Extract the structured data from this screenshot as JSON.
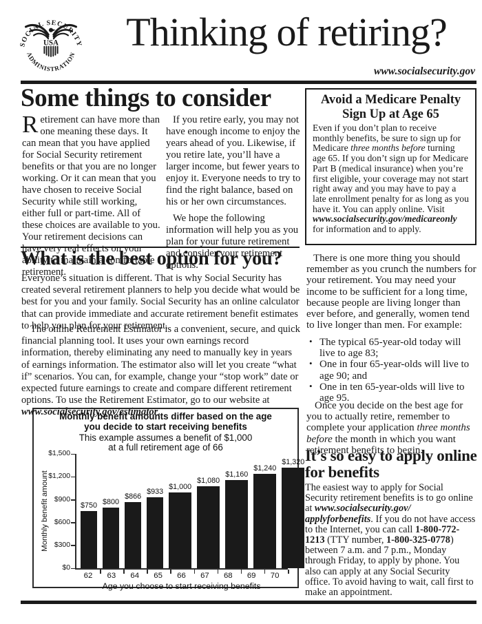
{
  "header": {
    "seal": {
      "top_text": "SOCIAL SECURITY",
      "bottom_text": "ADMINISTRATION",
      "center_text": "USA"
    },
    "title": "Thinking of retiring?",
    "website": "www.socialsecurity.gov"
  },
  "some_things": {
    "heading": "Some things to consider",
    "col1_dropcap": "R",
    "col1_rest": "etirement can have more than one meaning these days. It can mean that you have applied for Social Security retirement benefits or that you are no longer working. Or it can mean that you have chosen to receive Social Security while still working, either full or part-time. All of these choices are available to you. Your retirement decisions can have very real effects on your ability to maintain a comfortable retirement.",
    "col2_p1": "If you retire early, you may not have enough income to enjoy the years ahead of you. Likewise, if you retire late, you’ll have a larger income, but fewer years to enjoy it. Everyone needs to try to find the right balance, based on his or her own circumstances.",
    "col2_p2": "We hope the following information will help you as you plan for your future retirement and consider your retirement options."
  },
  "medicare_box": {
    "heading_line1": "Avoid a Medicare Penalty",
    "heading_line2": "Sign Up at Age 65",
    "body": [
      "Even if you don’t plan to receive monthly benefits, be sure to sign up for Medicare ",
      "three months before",
      " turning age 65. If you don’t sign up for Medicare Part B (medical insurance) when you’re first eligible, your coverage may not start right away and you may have to pay a late enrollment penalty for as long as you have it. You can apply online. Visit ",
      "www.socialsecurity.gov/",
      "medicareonly",
      " for information and to apply."
    ]
  },
  "best_option": {
    "heading": "What is the best option for you?",
    "p1": "Everyone’s situation is different. That is why Social Security has created several retirement planners to help you decide what would be best for you and your family. Social Security has an online calculator that can provide immediate and accurate retirement benefit estimates to help you plan for your retirement.",
    "p2": [
      "The online Retirement Estimator is a convenient, secure, and quick financial planning tool. It uses your own earnings record information, thereby eliminating any need to manually key in years of earnings information. The estimator also will let you create “what if” scenarios. You can, for example, change your “stop work” date or expected future earnings to create and compare different retirement options. To use the Retirement Estimator, go to our website at ",
      "www.socialsecurity.gov/estimator",
      "."
    ]
  },
  "longevity": {
    "p1": "There is one more thing you should remember as you crunch the numbers for your retirement. You may need your income to be sufficient for a long time, because people are living longer than ever before, and generally, women tend to live longer than men. For example:",
    "bullets": [
      "The typical 65-year-old today will live to age 83;",
      "One in four 65-year-olds will live to age 90; and",
      "One in ten 65-year-olds will live to age 95."
    ],
    "p2": [
      "Once you decide on the best age for you to actually retire, remember to complete your application ",
      "three months before",
      " the month in which you want retirement benefits to begin."
    ]
  },
  "easy_apply": {
    "heading": "It’s so easy to apply online for benefits",
    "body": [
      "The easiest way to apply for Social Security retirement benefits is to go online at ",
      "www.socialsecurity.gov/",
      "applyforbenefits",
      ". If you do not have access to the Internet, you can call ",
      "1-800-772-1213",
      " (TTY number, ",
      "1-800-325-0778",
      ") between 7 a.m. and 7 p.m., Monday through Friday, to apply by phone. You also can apply at any Social Security office. To avoid having to wait, call first to make an appointment."
    ]
  },
  "chart_data": {
    "type": "bar",
    "title": "Monthly benefit amounts differ based on the age you decide to start receiving benefits",
    "subtitle": "This example assumes a benefit of $1,000 at a full retirement age of 66",
    "categories": [
      "62",
      "63",
      "64",
      "65",
      "66",
      "67",
      "68",
      "69",
      "70"
    ],
    "values": [
      750,
      800,
      866,
      933,
      1000,
      1080,
      1160,
      1240,
      1320
    ],
    "bar_labels": [
      "$750",
      "$800",
      "$866",
      "$933",
      "$1,000",
      "$1,080",
      "$1,160",
      "$1,240",
      "$1,320"
    ],
    "xlabel": "Age you choose to start receiving benefits",
    "ylabel": "Monthly benefit amount",
    "ylim": [
      0,
      1500
    ],
    "yticks": [
      0,
      300,
      600,
      900,
      1200,
      1500
    ],
    "ytick_labels": [
      "$0",
      "$300",
      "$600",
      "$900",
      "$1,200",
      "$1,500"
    ],
    "bar_color": "#1a1a1a",
    "grid": false,
    "legend": false
  }
}
